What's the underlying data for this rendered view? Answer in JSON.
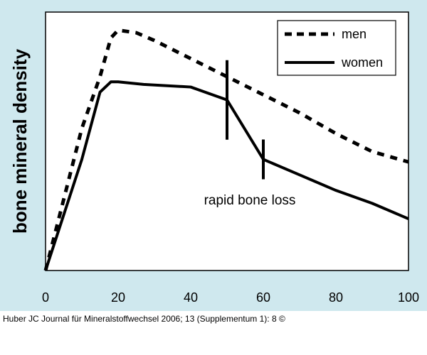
{
  "caption": "Huber JC Journal für Mineralstoffwechsel 2006; 13 (Supplementum 1): 8 ©",
  "chart_data": {
    "type": "line",
    "ylabel": "bone mineral density",
    "xlabel": "",
    "xlim": [
      0,
      100
    ],
    "ylim": [
      0,
      100
    ],
    "xticks": [
      "0",
      "20",
      "40",
      "60",
      "80",
      "100"
    ],
    "legend_position": "top-right",
    "series": [
      {
        "name": "men",
        "style": "dashed",
        "x": [
          0,
          10,
          15,
          18,
          20,
          25,
          30,
          40,
          50,
          60,
          70,
          80,
          90,
          100
        ],
        "y": [
          0,
          55,
          75,
          90,
          93,
          92,
          89,
          82,
          75,
          68,
          61,
          53,
          46,
          42
        ]
      },
      {
        "name": "women",
        "style": "solid",
        "x": [
          0,
          10,
          15,
          18,
          20,
          27,
          40,
          50,
          60,
          70,
          80,
          90,
          100
        ],
        "y": [
          0,
          43,
          69,
          73,
          73,
          72,
          71,
          66,
          43,
          37,
          31,
          26,
          20
        ]
      }
    ],
    "annotations": [
      {
        "text": "rapid bone loss",
        "x_range": [
          50,
          60
        ]
      }
    ]
  }
}
